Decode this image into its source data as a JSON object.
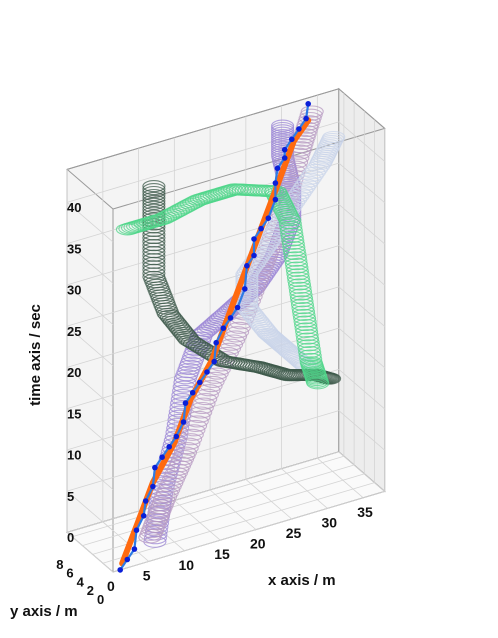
{
  "chart_data": {
    "type": "3d-line",
    "title": "",
    "xlabel": "x axis / m",
    "ylabel": "y axis / m",
    "zlabel": "time axis / sec",
    "xticks": [
      "0",
      "5",
      "10",
      "15",
      "20",
      "25",
      "30",
      "35"
    ],
    "yticks": [
      "0",
      "2",
      "4",
      "6",
      "8"
    ],
    "zticks": [
      "0",
      "5",
      "10",
      "15",
      "20",
      "25",
      "30",
      "35",
      "40"
    ],
    "xlim": [
      0,
      38
    ],
    "ylim": [
      0,
      9
    ],
    "zlim": [
      0,
      44
    ],
    "grid": true,
    "legend": "none",
    "series": [
      {
        "kind": "tube",
        "color": "#9b86d6",
        "points": [
          [
            8,
            3,
            0
          ],
          [
            9,
            3,
            6
          ],
          [
            11,
            3,
            12
          ],
          [
            13,
            4,
            18
          ],
          [
            16,
            5,
            22
          ],
          [
            20,
            5,
            24
          ],
          [
            24,
            6,
            25
          ],
          [
            27,
            6,
            28
          ],
          [
            29,
            6,
            32
          ],
          [
            29,
            6,
            36
          ],
          [
            28,
            6,
            40
          ],
          [
            28,
            6,
            44
          ]
        ]
      },
      {
        "kind": "tube",
        "color": "#b79ac2",
        "points": [
          [
            8,
            4,
            0
          ],
          [
            10,
            4,
            4
          ],
          [
            13,
            4,
            9
          ],
          [
            17,
            5,
            15
          ],
          [
            21,
            5,
            21
          ],
          [
            25,
            6,
            27
          ],
          [
            28,
            6,
            33
          ],
          [
            31,
            7,
            39
          ],
          [
            33,
            7,
            44
          ]
        ]
      },
      {
        "kind": "tube",
        "color": "#c9d4ea",
        "points": [
          [
            32,
            7,
            13
          ],
          [
            29,
            7,
            16
          ],
          [
            26,
            6,
            19
          ],
          [
            23,
            6,
            23
          ],
          [
            23,
            6,
            27
          ],
          [
            26,
            6,
            30
          ],
          [
            30,
            7,
            33
          ],
          [
            34,
            7,
            37
          ],
          [
            36,
            7,
            40
          ]
        ]
      },
      {
        "kind": "tube",
        "color": "#3d5a4b",
        "points": [
          [
            10,
            6,
            41
          ],
          [
            10,
            6,
            36
          ],
          [
            10,
            6,
            30
          ],
          [
            12,
            6,
            25
          ],
          [
            15,
            6,
            21
          ],
          [
            19,
            5,
            18
          ],
          [
            24,
            5,
            16
          ],
          [
            28,
            5,
            14
          ],
          [
            32,
            5,
            13
          ],
          [
            34,
            5,
            12
          ]
        ]
      },
      {
        "kind": "tube",
        "color": "#4fd68a",
        "points": [
          [
            7,
            7,
            36
          ],
          [
            12,
            7,
            36
          ],
          [
            17,
            7,
            37
          ],
          [
            22,
            7,
            37
          ],
          [
            27,
            6,
            36
          ],
          [
            29,
            6,
            32
          ],
          [
            30,
            6,
            26
          ],
          [
            31,
            6,
            20
          ],
          [
            32,
            6,
            14
          ],
          [
            33,
            6,
            11
          ]
        ]
      },
      {
        "kind": "line",
        "color": "#ff6a10",
        "points": [
          [
            2,
            1,
            0
          ],
          [
            4,
            1,
            4
          ],
          [
            7,
            2,
            8
          ],
          [
            10,
            2,
            12
          ],
          [
            13,
            3,
            16
          ],
          [
            16,
            3,
            20
          ],
          [
            19,
            4,
            24
          ],
          [
            22,
            5,
            28
          ],
          [
            25,
            6,
            32
          ],
          [
            28,
            7,
            36
          ],
          [
            31,
            8,
            40
          ],
          [
            33,
            8,
            42
          ]
        ]
      },
      {
        "kind": "line-markers",
        "color": "#2e7be4",
        "marker_color": "#0a1fd8",
        "points": [
          [
            1,
            0,
            0
          ],
          [
            2,
            0,
            1
          ],
          [
            3,
            0,
            2
          ],
          [
            4,
            1,
            3.5
          ],
          [
            5,
            1,
            5
          ],
          [
            6,
            2,
            6
          ],
          [
            7,
            2,
            7.5
          ],
          [
            8,
            3,
            9
          ],
          [
            9,
            3,
            10
          ],
          [
            10,
            3,
            11
          ],
          [
            11,
            3,
            12
          ],
          [
            12,
            3,
            13.5
          ],
          [
            13,
            4,
            15
          ],
          [
            14,
            4,
            16
          ],
          [
            15,
            4,
            17
          ],
          [
            16,
            4,
            18
          ],
          [
            17,
            4,
            19
          ],
          [
            18,
            5,
            20.5
          ],
          [
            19,
            5,
            22
          ],
          [
            20,
            5,
            23
          ],
          [
            21,
            5,
            24
          ],
          [
            22,
            5,
            26
          ],
          [
            23,
            6,
            28
          ],
          [
            24,
            6,
            29
          ],
          [
            24,
            6,
            31
          ],
          [
            25,
            6,
            32
          ],
          [
            26,
            6,
            33
          ],
          [
            27,
            6,
            35
          ],
          [
            27,
            6,
            37
          ],
          [
            28,
            7,
            38
          ],
          [
            29,
            7,
            39
          ],
          [
            29,
            7,
            40
          ],
          [
            30,
            7,
            41
          ],
          [
            31,
            7,
            42
          ],
          [
            32,
            7,
            43
          ],
          [
            33,
            8,
            44
          ]
        ]
      }
    ]
  }
}
